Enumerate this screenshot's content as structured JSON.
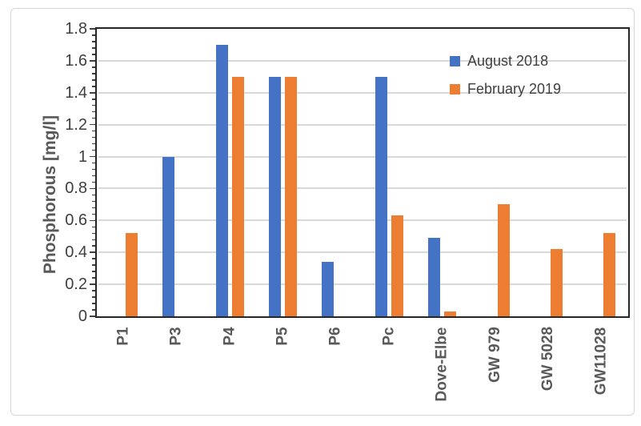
{
  "chart_data": {
    "type": "bar",
    "title": "",
    "xlabel": "",
    "ylabel": "Phosphorous [mg/l]",
    "ylim": [
      0,
      1.8
    ],
    "major_step": 0.2,
    "minor_step": 0.04,
    "grid": true,
    "legend_position": "inside-top-right",
    "y_ticks": [
      "0",
      "0.2",
      "0.4",
      "0.6",
      "0.8",
      "1",
      "1.2",
      "1.4",
      "1.6",
      "1.8"
    ],
    "categories": [
      "P1",
      "P3",
      "P4",
      "P5",
      "P6",
      "Pc",
      "Dove-Elbe",
      "GW 979",
      "GW 5028",
      "GW11028"
    ],
    "series": [
      {
        "name": "August 2018",
        "color": "#4472C4",
        "values": [
          null,
          1.0,
          1.7,
          1.5,
          0.34,
          1.5,
          0.49,
          null,
          null,
          null
        ]
      },
      {
        "name": "February 2019",
        "color": "#ED7D31",
        "values": [
          0.52,
          null,
          1.5,
          1.5,
          null,
          0.63,
          0.03,
          0.7,
          0.42,
          0.52
        ]
      }
    ],
    "colors": {
      "gridline": "#d9d9d9",
      "axis_line": "#262626",
      "axis_text": "#3f3f3f",
      "category_text": "#595959",
      "legend_text": "#404040",
      "frame_border": "#d6d6d6"
    }
  }
}
